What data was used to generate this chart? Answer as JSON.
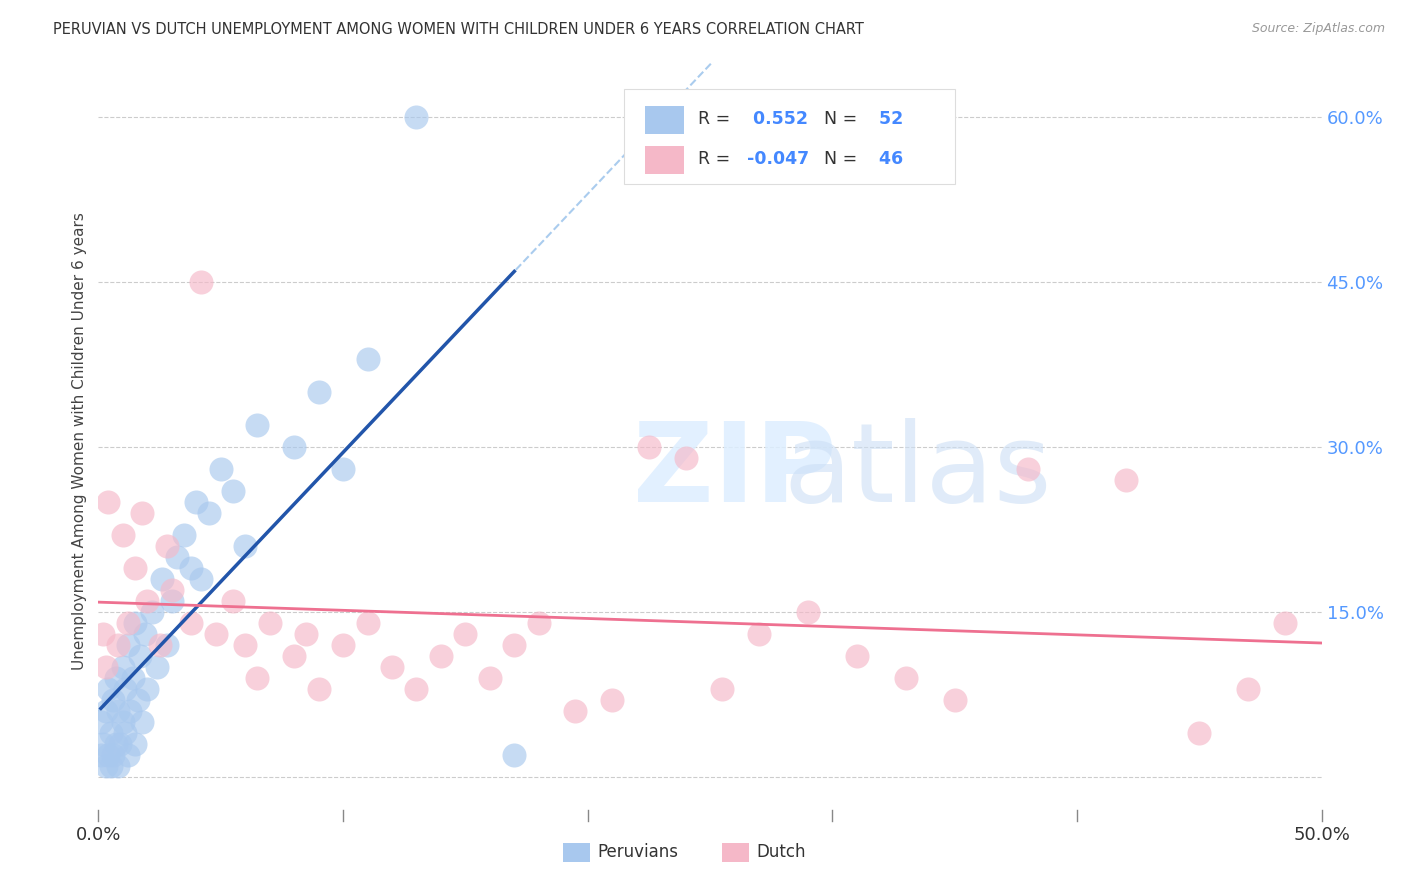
{
  "title": "PERUVIAN VS DUTCH UNEMPLOYMENT AMONG WOMEN WITH CHILDREN UNDER 6 YEARS CORRELATION CHART",
  "source": "Source: ZipAtlas.com",
  "ylabel": "Unemployment Among Women with Children Under 6 years",
  "xmin": 0.0,
  "xmax": 0.5,
  "ymin": -0.04,
  "ymax": 0.65,
  "yticks": [
    0.0,
    0.15,
    0.3,
    0.45,
    0.6
  ],
  "ytick_labels": [
    "",
    "15.0%",
    "30.0%",
    "45.0%",
    "60.0%"
  ],
  "xticks": [
    0.0,
    0.1,
    0.2,
    0.3,
    0.4,
    0.5
  ],
  "peruvian_R": 0.552,
  "peruvian_N": 52,
  "dutch_R": -0.047,
  "dutch_N": 46,
  "peruvian_color": "#A8C8EE",
  "dutch_color": "#F5B8C8",
  "peruvian_line_color": "#2255AA",
  "dutch_line_color": "#EE7090",
  "dashed_color": "#AACCEE",
  "background_color": "#FFFFFF",
  "peruvian_x": [
    0.001,
    0.001,
    0.002,
    0.003,
    0.003,
    0.004,
    0.004,
    0.005,
    0.005,
    0.006,
    0.006,
    0.007,
    0.007,
    0.008,
    0.008,
    0.009,
    0.01,
    0.01,
    0.011,
    0.011,
    0.012,
    0.012,
    0.013,
    0.014,
    0.015,
    0.015,
    0.016,
    0.017,
    0.018,
    0.019,
    0.02,
    0.022,
    0.024,
    0.026,
    0.028,
    0.03,
    0.032,
    0.035,
    0.038,
    0.04,
    0.042,
    0.045,
    0.05,
    0.055,
    0.06,
    0.065,
    0.08,
    0.09,
    0.1,
    0.11,
    0.13,
    0.17
  ],
  "peruvian_y": [
    0.02,
    0.05,
    0.03,
    0.01,
    0.06,
    0.02,
    0.08,
    0.01,
    0.04,
    0.02,
    0.07,
    0.03,
    0.09,
    0.01,
    0.06,
    0.03,
    0.05,
    0.1,
    0.04,
    0.08,
    0.02,
    0.12,
    0.06,
    0.09,
    0.03,
    0.14,
    0.07,
    0.11,
    0.05,
    0.13,
    0.08,
    0.15,
    0.1,
    0.18,
    0.12,
    0.16,
    0.2,
    0.22,
    0.19,
    0.25,
    0.18,
    0.24,
    0.28,
    0.26,
    0.21,
    0.32,
    0.3,
    0.35,
    0.28,
    0.38,
    0.6,
    0.02
  ],
  "dutch_x": [
    0.002,
    0.003,
    0.004,
    0.008,
    0.01,
    0.012,
    0.015,
    0.018,
    0.02,
    0.025,
    0.028,
    0.03,
    0.038,
    0.042,
    0.048,
    0.055,
    0.06,
    0.065,
    0.07,
    0.08,
    0.085,
    0.09,
    0.1,
    0.11,
    0.12,
    0.13,
    0.14,
    0.15,
    0.16,
    0.17,
    0.18,
    0.195,
    0.21,
    0.225,
    0.24,
    0.255,
    0.27,
    0.29,
    0.31,
    0.33,
    0.35,
    0.38,
    0.42,
    0.45,
    0.47,
    0.485
  ],
  "dutch_y": [
    0.13,
    0.1,
    0.25,
    0.12,
    0.22,
    0.14,
    0.19,
    0.24,
    0.16,
    0.12,
    0.21,
    0.17,
    0.14,
    0.45,
    0.13,
    0.16,
    0.12,
    0.09,
    0.14,
    0.11,
    0.13,
    0.08,
    0.12,
    0.14,
    0.1,
    0.08,
    0.11,
    0.13,
    0.09,
    0.12,
    0.14,
    0.06,
    0.07,
    0.3,
    0.29,
    0.08,
    0.13,
    0.15,
    0.11,
    0.09,
    0.07,
    0.28,
    0.27,
    0.04,
    0.08,
    0.14
  ]
}
